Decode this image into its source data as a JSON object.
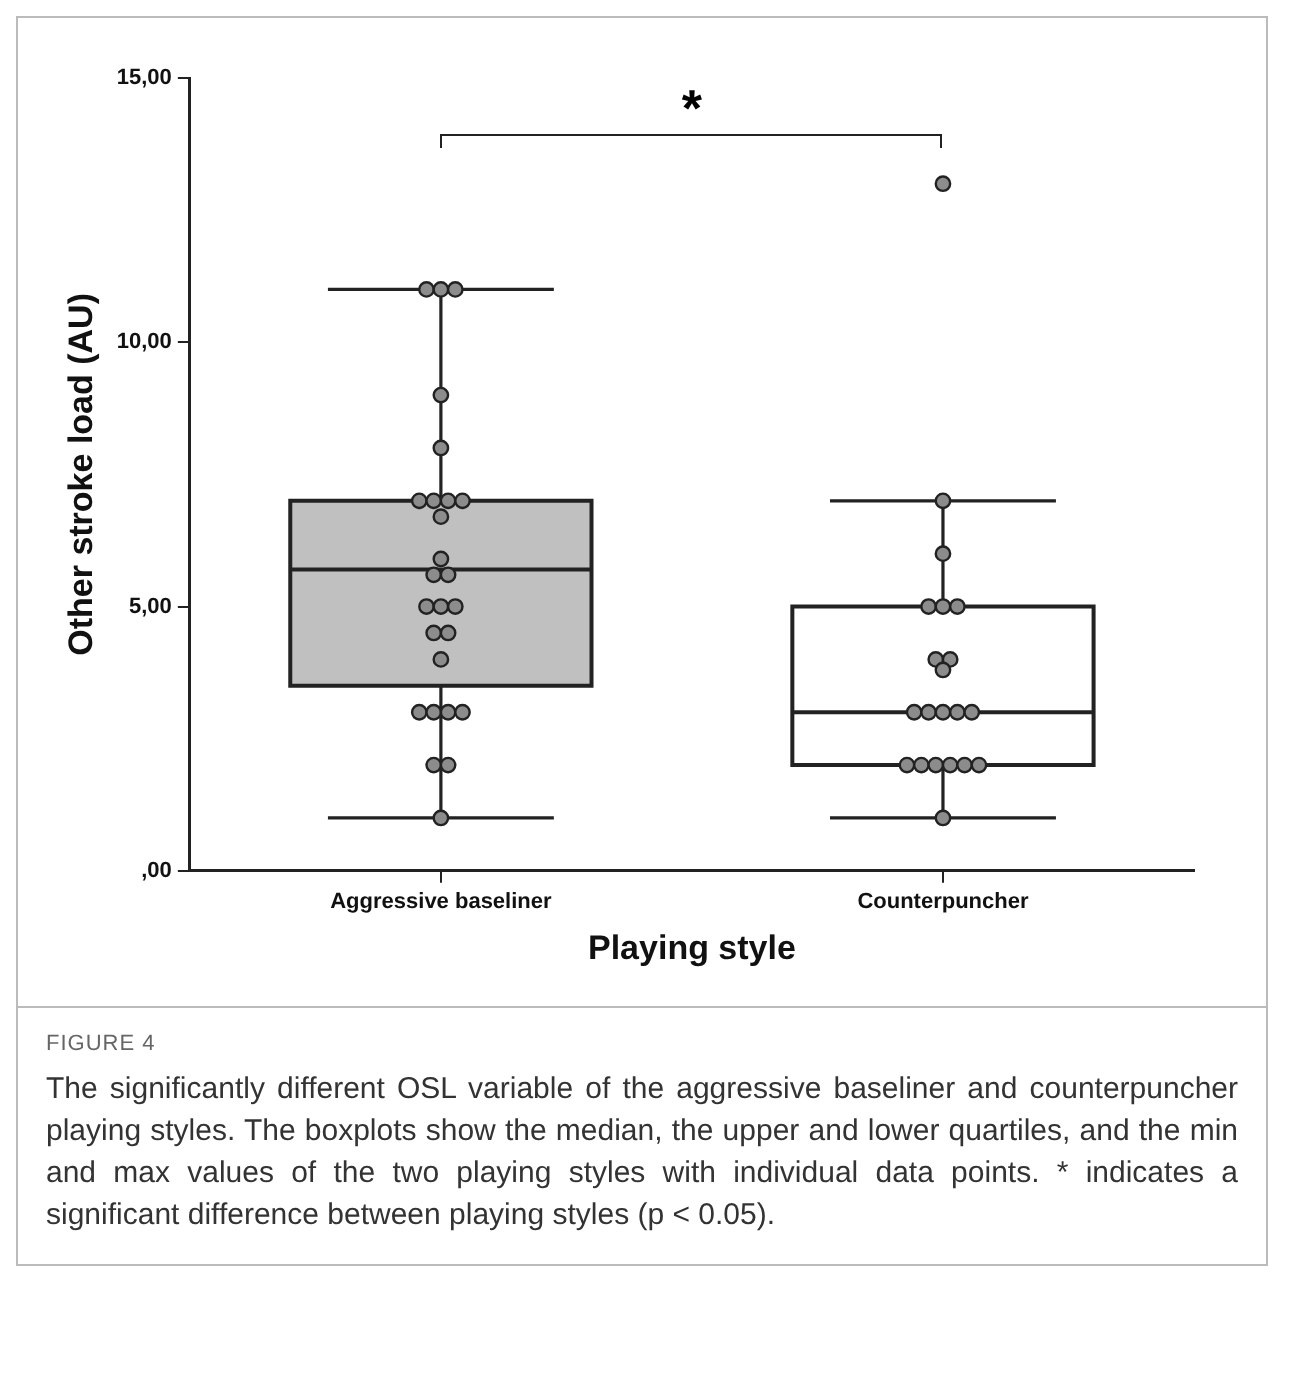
{
  "chart_data": {
    "type": "box",
    "categories": [
      "Aggressive baseliner",
      "Counterpuncher"
    ],
    "xlabel": "Playing style",
    "ylabel": "Other stroke load (AU)",
    "ylim": [
      0,
      15
    ],
    "yticks": [
      {
        "value": 0,
        "label": ",00"
      },
      {
        "value": 5,
        "label": "5,00"
      },
      {
        "value": 10,
        "label": "10,00"
      },
      {
        "value": 15,
        "label": "15,00"
      }
    ],
    "grid": false,
    "series": [
      {
        "type": "box",
        "colors": [
          "#c0c0c0",
          "#ffffff"
        ],
        "boxes": [
          {
            "low": 1,
            "q1": 3.5,
            "median": 5.7,
            "q3": 7,
            "high": 11
          },
          {
            "low": 1,
            "q1": 2,
            "median": 3,
            "q3": 5,
            "high": 7
          }
        ]
      },
      {
        "type": "scatter",
        "color": "#8c8c8c",
        "marker": "circle",
        "x": [
          "Aggressive baseliner",
          "Aggressive baseliner",
          "Aggressive baseliner",
          "Aggressive baseliner",
          "Aggressive baseliner",
          "Aggressive baseliner",
          "Aggressive baseliner",
          "Aggressive baseliner",
          "Aggressive baseliner",
          "Aggressive baseliner",
          "Aggressive baseliner",
          "Aggressive baseliner",
          "Aggressive baseliner",
          "Aggressive baseliner",
          "Aggressive baseliner",
          "Aggressive baseliner",
          "Aggressive baseliner",
          "Aggressive baseliner",
          "Aggressive baseliner",
          "Aggressive baseliner",
          "Aggressive baseliner",
          "Aggressive baseliner",
          "Aggressive baseliner",
          "Aggressive baseliner",
          "Aggressive baseliner",
          "Aggressive baseliner",
          "Counterpuncher",
          "Counterpuncher",
          "Counterpuncher",
          "Counterpuncher",
          "Counterpuncher",
          "Counterpuncher",
          "Counterpuncher",
          "Counterpuncher",
          "Counterpuncher",
          "Counterpuncher",
          "Counterpuncher",
          "Counterpuncher",
          "Counterpuncher",
          "Counterpuncher",
          "Counterpuncher",
          "Counterpuncher",
          "Counterpuncher",
          "Counterpuncher",
          "Counterpuncher",
          "Counterpuncher",
          "Counterpuncher"
        ],
        "values": [
          11,
          11,
          11,
          9,
          8,
          7,
          7,
          7,
          7,
          6.7,
          5.9,
          5.6,
          5.6,
          5,
          5,
          5,
          4.5,
          4.5,
          4,
          3,
          3,
          3,
          3,
          2,
          2,
          1,
          13,
          7,
          6,
          5,
          5,
          5,
          4,
          4,
          3.8,
          3,
          3,
          3,
          3,
          3,
          2,
          2,
          2,
          2,
          2,
          2,
          1
        ]
      }
    ],
    "annotations": [
      "*",
      "FIGURE 4",
      "The significantly different OSL variable of the aggressive baseliner and counterpuncher playing styles. The boxplots show the median, the upper and lower quartiles, and the min and max values of the two playing styles with individual data points. * indicates a significant difference between playing styles (p < 0.05)."
    ]
  }
}
